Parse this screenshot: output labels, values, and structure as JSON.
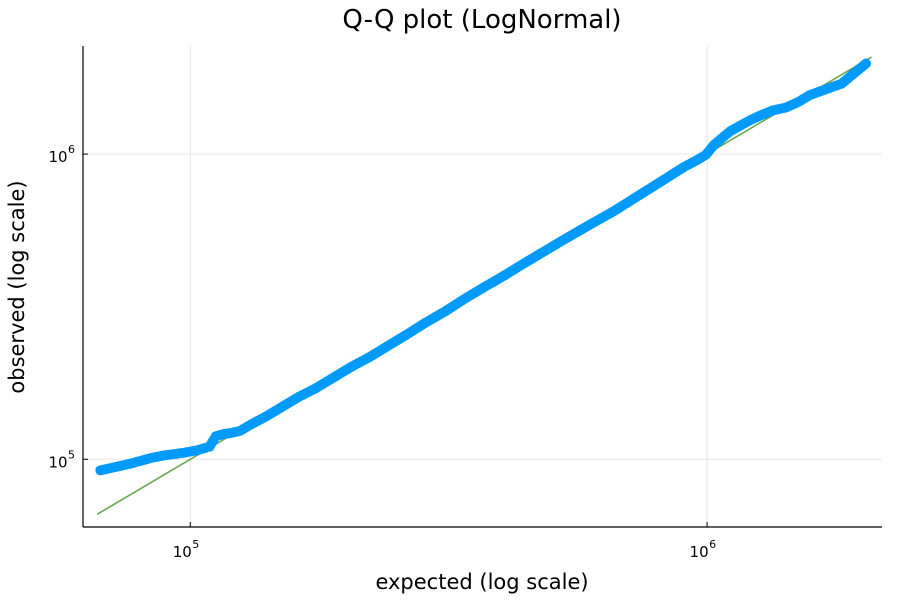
{
  "chart_data": {
    "type": "scatter",
    "title": "Q-Q plot (LogNormal)",
    "xlabel": "expected (log scale)",
    "ylabel": "observed (log scale)",
    "xscale": "log10",
    "yscale": "log10",
    "xlim": [
      62000,
      2180000
    ],
    "ylim": [
      60000,
      2260000
    ],
    "grid": true,
    "legend": "none",
    "x_ticks": [
      {
        "base": "10",
        "exp": "5",
        "value": 100000
      },
      {
        "base": "10",
        "exp": "6",
        "value": 1000000
      }
    ],
    "y_ticks": [
      {
        "base": "10",
        "exp": "5",
        "value": 100000
      },
      {
        "base": "10",
        "exp": "6",
        "value": 1000000
      }
    ],
    "colors": {
      "points": "#009AFA",
      "reference_line": "#6AA84F",
      "axis": "#000000",
      "grid": "#E6E6E6"
    },
    "reference_line": {
      "x": [
        66000,
        2080000
      ],
      "y": [
        66000,
        2080000
      ]
    },
    "series": [
      {
        "x": [
          67000,
          77000,
          84000,
          89000,
          93000,
          97000,
          100000,
          103000,
          107000,
          109000,
          111000,
          112000,
          116000,
          120000,
          125000,
          131000,
          140000,
          150000,
          162000,
          175000,
          190000,
          205000,
          222000,
          242000,
          262000,
          285000,
          312000,
          340000,
          372000,
          405000,
          440000,
          480000,
          522000,
          565000,
          612000,
          660000,
          715000,
          772000,
          835000,
          900000,
          955000,
          995000,
          1030000,
          1070000,
          1110000,
          1160000,
          1210000,
          1270000,
          1340000,
          1420000,
          1500000,
          1580000,
          1680000,
          1820000,
          2030000
        ],
        "y": [
          92000,
          97000,
          101000,
          103000,
          104000,
          105000,
          106000,
          107000,
          109000,
          110000,
          116000,
          119000,
          121000,
          122000,
          124000,
          130000,
          138000,
          148000,
          160000,
          171000,
          186000,
          201000,
          216000,
          236000,
          256000,
          280000,
          306000,
          336000,
          368000,
          400000,
          436000,
          476000,
          518000,
          560000,
          605000,
          650000,
          708000,
          768000,
          835000,
          905000,
          955000,
          995000,
          1070000,
          1130000,
          1190000,
          1240000,
          1290000,
          1340000,
          1390000,
          1420000,
          1480000,
          1560000,
          1620000,
          1700000,
          1980000
        ]
      }
    ]
  }
}
